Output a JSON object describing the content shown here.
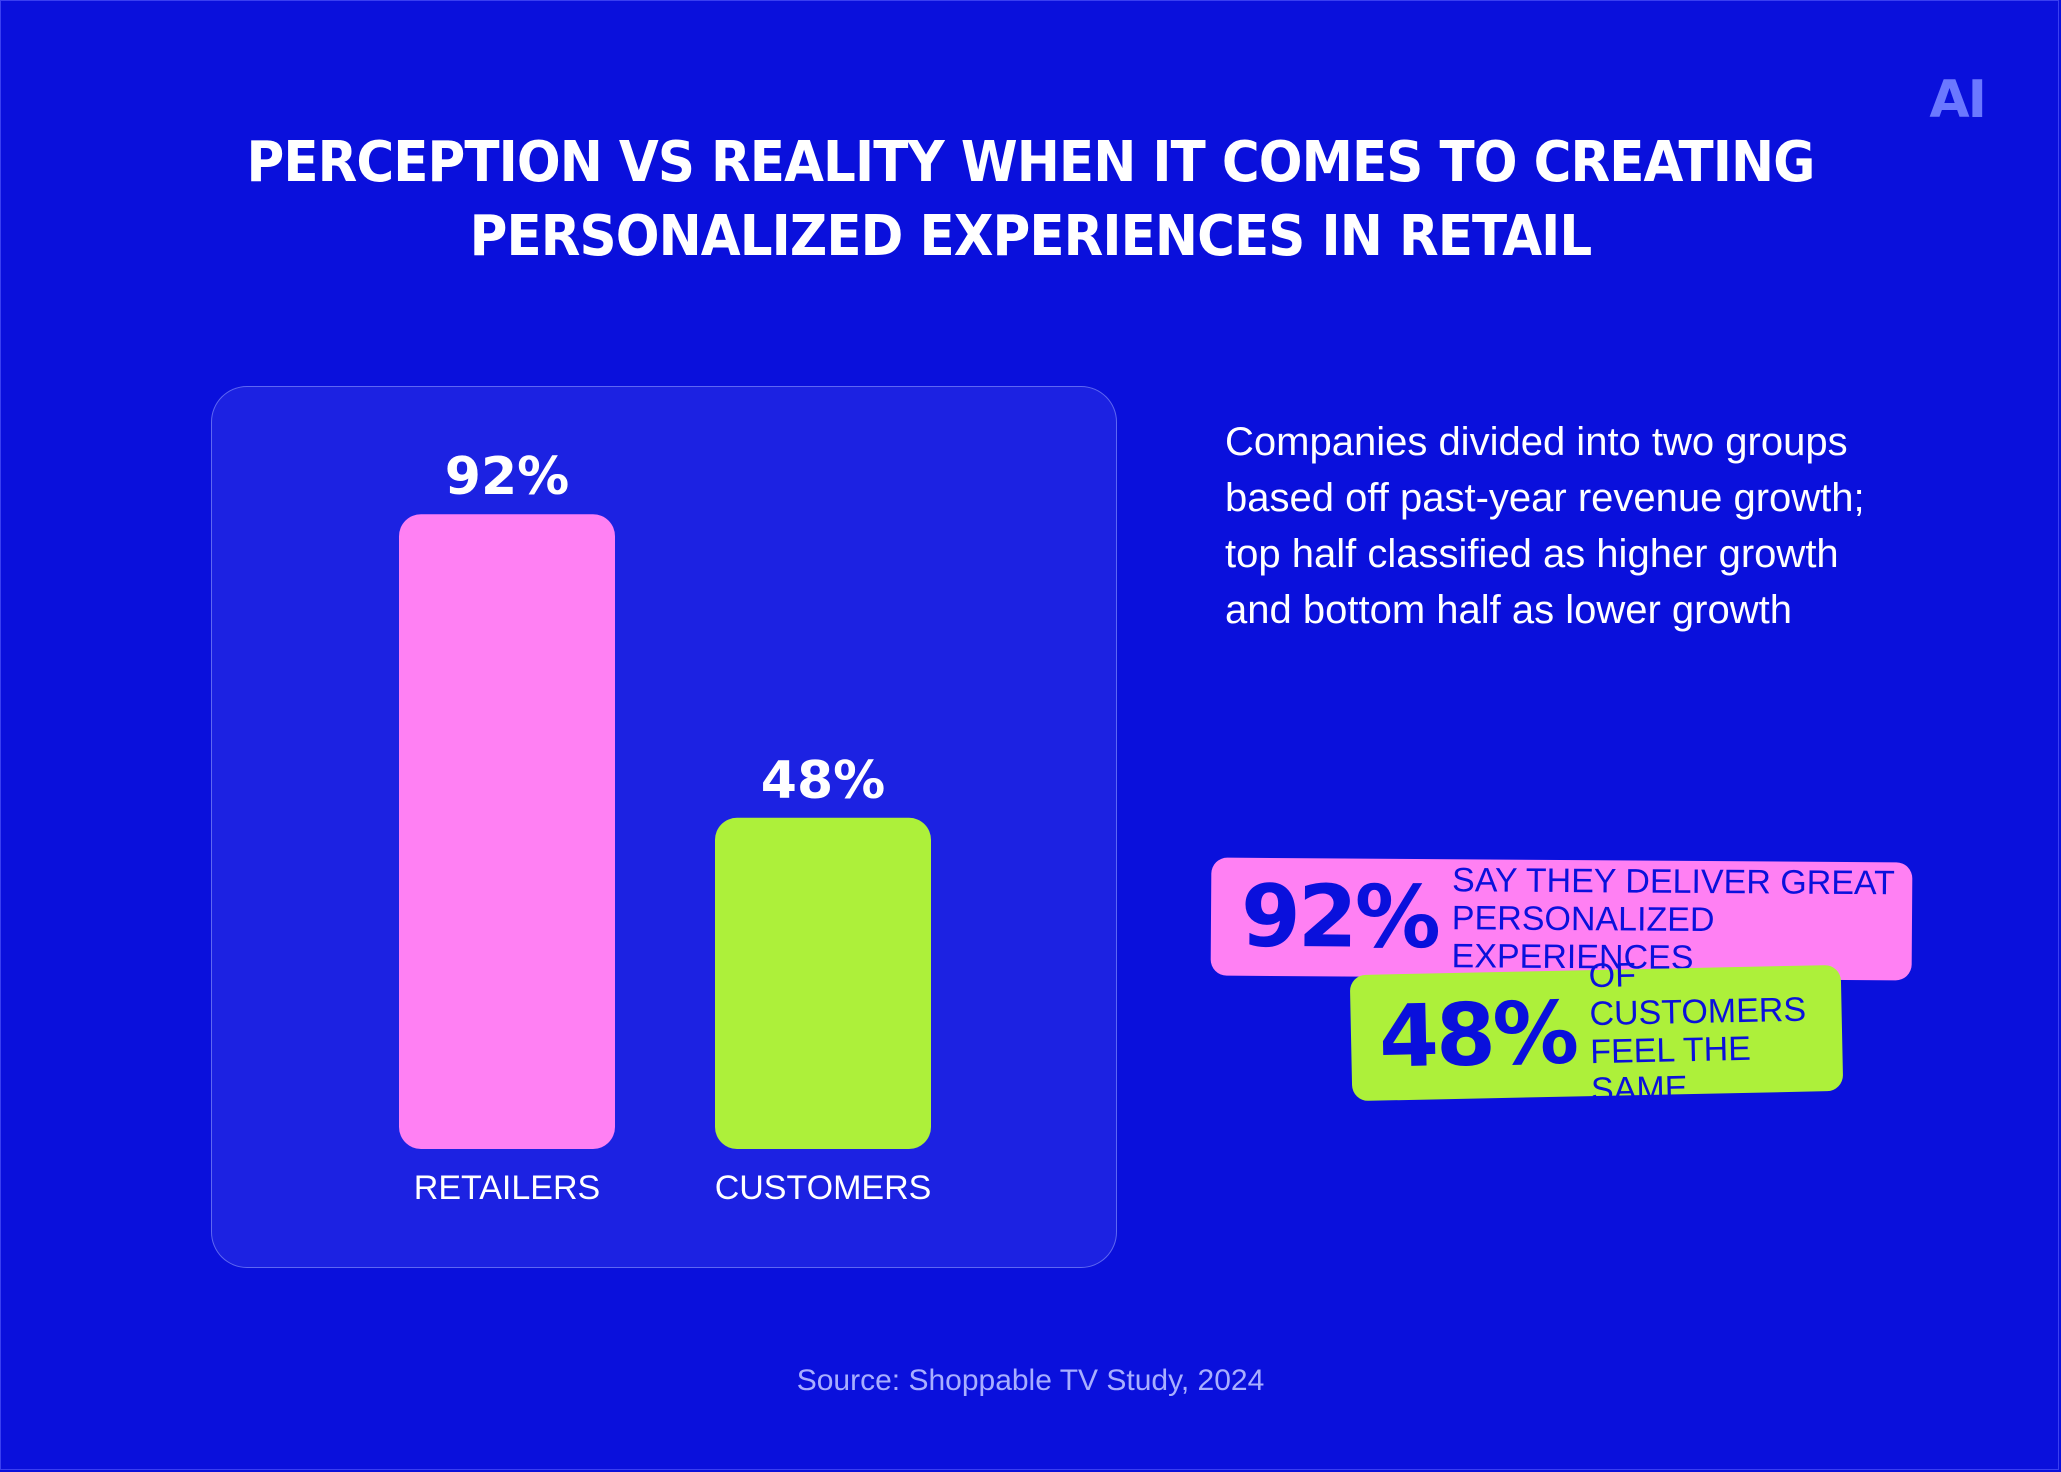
{
  "logo": "AI",
  "title": {
    "line1": "PERCEPTION VS REALITY WHEN IT COMES TO CREATING",
    "line2": "PERSONALIZED EXPERIENCES IN RETAIL"
  },
  "chart_data": {
    "type": "bar",
    "title": "PERCEPTION VS REALITY WHEN IT COMES TO CREATING PERSONALIZED EXPERIENCES IN RETAIL",
    "categories": [
      "RETAILERS",
      "CUSTOMERS"
    ],
    "values": [
      92,
      48
    ],
    "value_labels": [
      "92%",
      "48%"
    ],
    "colors": [
      "#ff80f3",
      "#adf03a"
    ],
    "xlabel": "",
    "ylabel": "",
    "ylim": [
      0,
      100
    ],
    "grid": false,
    "legend": "none"
  },
  "description": "Companies divided into two groups based off past-year revenue growth; top half classified as higher growth and bottom half as lower growth",
  "callouts": {
    "retailers": {
      "value": "92%",
      "line1": "SAY THEY DELIVER GREAT",
      "line2": "PERSONALIZED EXPERIENCES",
      "color": "#ff80f3"
    },
    "customers": {
      "value": "48%",
      "line1": "OF CUSTOMERS",
      "line2": "FEEL THE SAME",
      "color": "#adf03a"
    }
  },
  "source": "Source: Shoppable TV Study, 2024",
  "colors": {
    "background": "#0a10dc",
    "panel": "#1c22e2",
    "text": "#ffffff"
  }
}
